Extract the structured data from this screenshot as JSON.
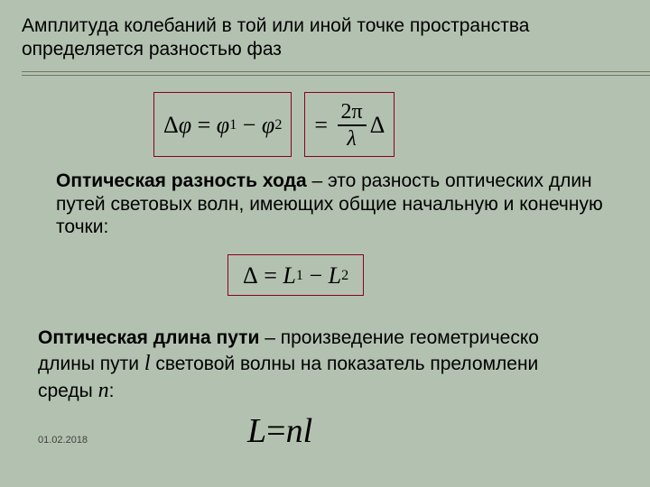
{
  "colors": {
    "background": "#b3c2b0",
    "text": "#000000",
    "rule": "#707762",
    "box_border": "#8a001e",
    "date_text": "#3f3f3f"
  },
  "typography": {
    "body_font": "Arial",
    "math_font": "Times New Roman",
    "body_size_pt": 16,
    "formula_size_pt": 20,
    "big_formula_size_pt": 29,
    "date_size_pt": 8
  },
  "para1": "Амплитуда колебаний в той или иной точке пространства определяется разностью фаз",
  "eq1_left": "Δφ = φ₁ − φ₂",
  "eq1_right_num": "2π",
  "eq1_right_den": "λ",
  "eq1_right_tail": "Δ",
  "para2_bold": "Оптическая разность хода",
  "para2_rest": " – это разность оптических длин путей световых волн, имеющих общие начальную и конечную точки:",
  "eq2": "Δ = L₁ − L₂",
  "para3_bold": "Оптическая длина пути",
  "para3_a": " – произведение геометрическо",
  "para3_b1": "длины пути ",
  "para3_l": "l",
  "para3_b2": " световой волны на показатель преломлени",
  "para3_c1": "среды ",
  "para3_n": "n",
  "para3_c2": ":",
  "eq3_L": "L",
  "eq3_eq": " = ",
  "eq3_n": "n",
  "eq3_l": "l",
  "date": "01.02.2018"
}
